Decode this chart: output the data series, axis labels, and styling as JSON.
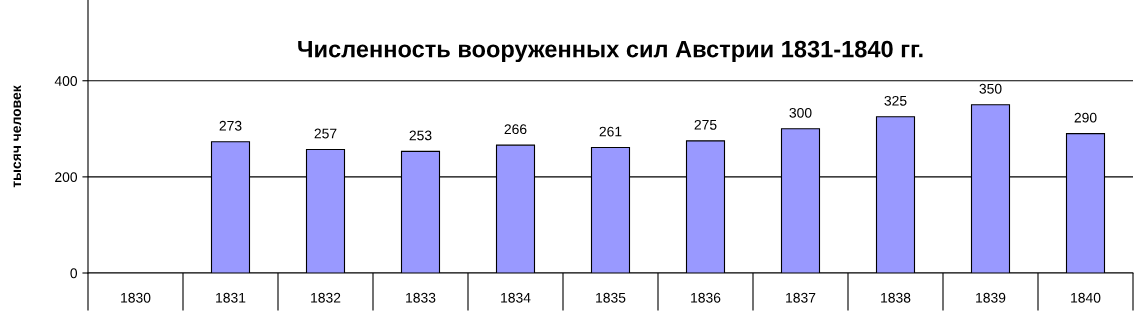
{
  "chart_data": {
    "type": "bar",
    "title": "Численность вооруженных сил Австрии 1831-1840 гг.",
    "ylabel": "тысяч человек",
    "categories": [
      "1830",
      "1831",
      "1832",
      "1833",
      "1834",
      "1835",
      "1836",
      "1837",
      "1838",
      "1839",
      "1840"
    ],
    "values": [
      null,
      273,
      257,
      253,
      266,
      261,
      275,
      300,
      325,
      350,
      290
    ],
    "color": "#9999ff",
    "ylim": [
      0,
      568
    ],
    "yticks": [
      0,
      200,
      400
    ],
    "grid": "y",
    "data_labels": true,
    "legend": false
  }
}
